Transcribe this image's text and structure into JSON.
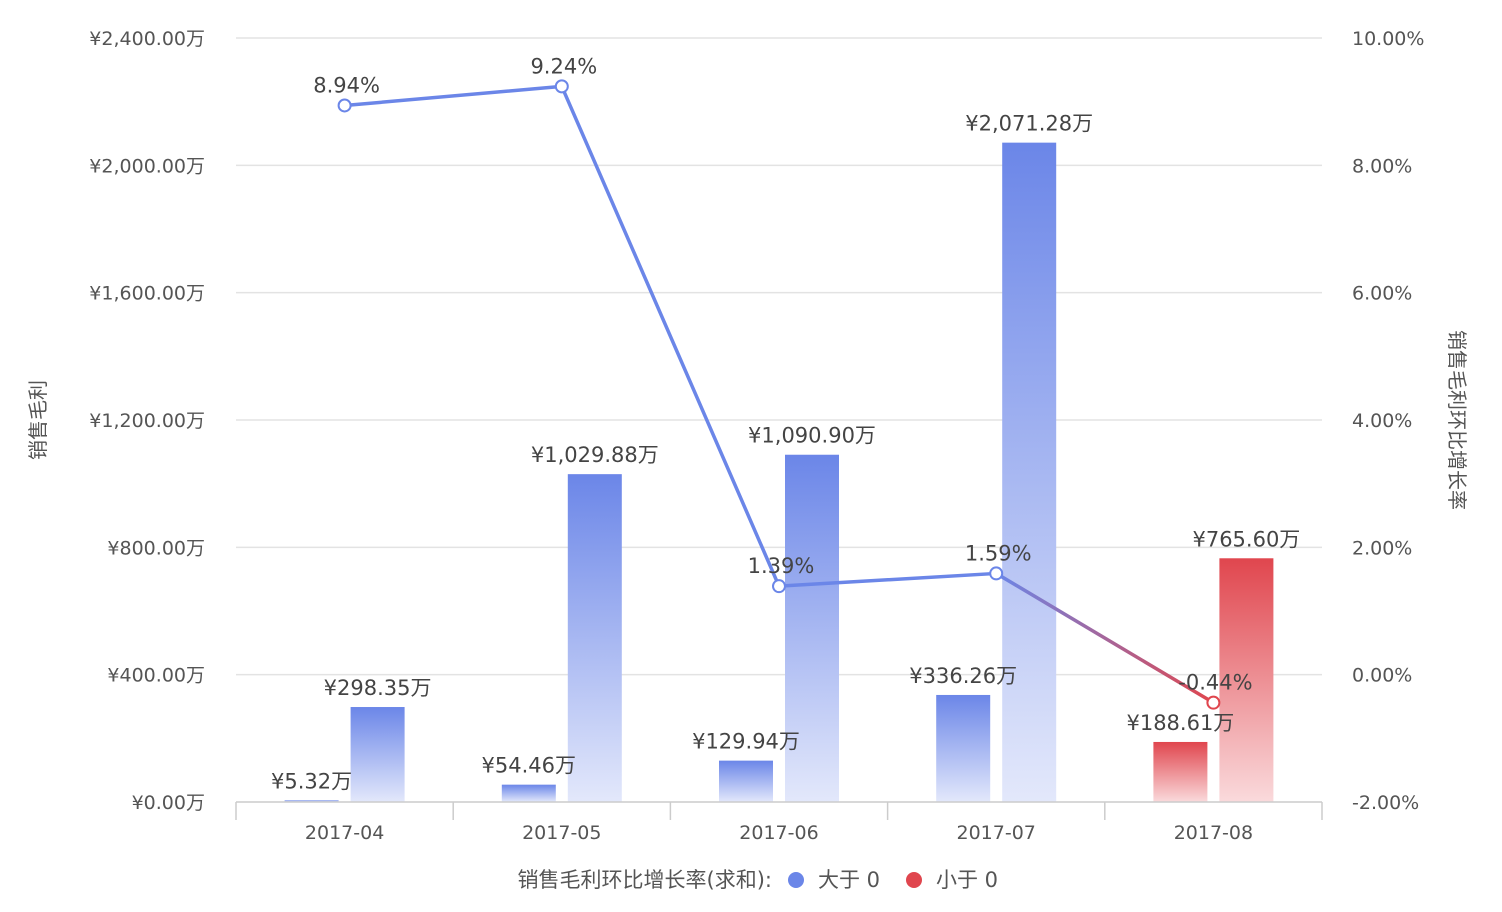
{
  "chart_data": {
    "type": "bar",
    "categories": [
      "2017-04",
      "2017-05",
      "2017-06",
      "2017-07",
      "2017-08"
    ],
    "series": [
      {
        "values": [
          5.32,
          54.46,
          129.94,
          336.26,
          188.61
        ]
      },
      {
        "values": [
          298.35,
          1029.88,
          1090.9,
          2071.28,
          765.6
        ]
      }
    ],
    "bar_labels": [
      [
        "¥5.32万",
        "¥54.46万",
        "¥129.94万",
        "¥336.26万",
        "¥188.61万"
      ],
      [
        "¥298.35万",
        "¥1,029.88万",
        "¥1,090.90万",
        "¥2,071.28万",
        "¥765.60万"
      ]
    ],
    "line": {
      "values": [
        8.94,
        9.24,
        1.39,
        1.59,
        -0.44
      ],
      "labels": [
        "8.94%",
        "9.24%",
        "1.39%",
        "1.59%",
        "-0.44%"
      ]
    },
    "ylabel": "销售毛利",
    "y2label": "销售毛利环比增长率",
    "ylim": [
      0,
      2400
    ],
    "y2lim": [
      -2,
      10
    ],
    "y_ticks": [
      "¥0.00万",
      "¥400.00万",
      "¥800.00万",
      "¥1,200.00万",
      "¥1,600.00万",
      "¥2,000.00万",
      "¥2,400.00万"
    ],
    "y2_ticks": [
      "-2.00%",
      "0.00%",
      "2.00%",
      "4.00%",
      "6.00%",
      "8.00%",
      "10.00%"
    ],
    "grid": true,
    "legend": {
      "position": "bottom",
      "title": "销售毛利环比增长率(求和):",
      "items": [
        {
          "label": "大于 0",
          "color": "#6b86e8"
        },
        {
          "label": "小于 0",
          "color": "#e0464e"
        }
      ]
    },
    "colors": {
      "positive": "#6b86e8",
      "negative": "#e0464e"
    }
  }
}
